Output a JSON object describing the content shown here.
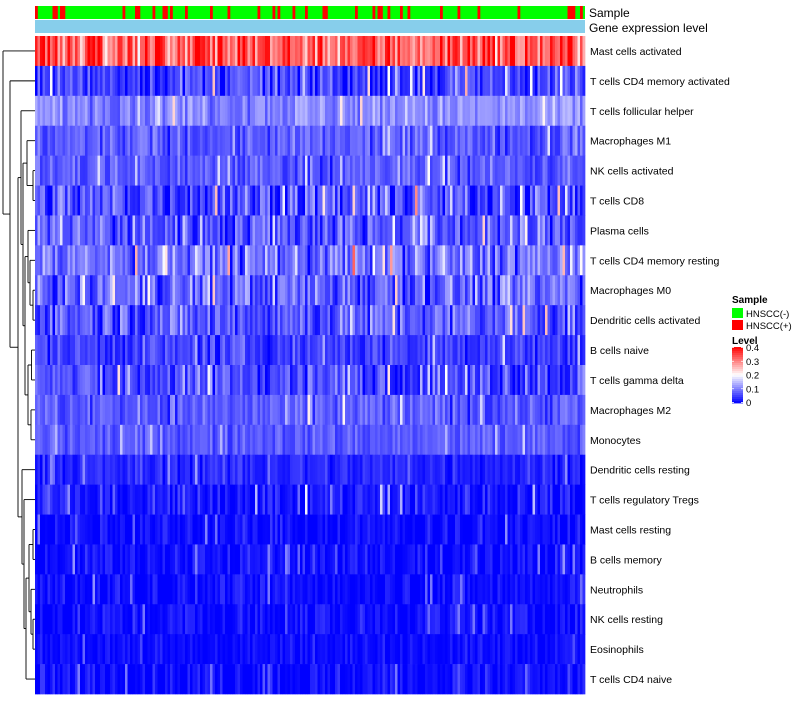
{
  "chart_data": {
    "type": "heatmap",
    "annotation_tracks": [
      {
        "name": "Sample",
        "kind": "categorical"
      },
      {
        "name": "Gene expression level",
        "kind": "constant"
      }
    ],
    "rows": [
      {
        "label": "Mast cells activated",
        "mean": 0.33,
        "spread": 0.09
      },
      {
        "label": "T cells CD4 memory activated",
        "mean": 0.05,
        "spread": 0.06
      },
      {
        "label": "T cells follicular helper",
        "mean": 0.11,
        "spread": 0.04
      },
      {
        "label": "Macrophages M1",
        "mean": 0.07,
        "spread": 0.04
      },
      {
        "label": "NK cells activated",
        "mean": 0.07,
        "spread": 0.04
      },
      {
        "label": "T cells CD8",
        "mean": 0.06,
        "spread": 0.07
      },
      {
        "label": "Plasma cells",
        "mean": 0.07,
        "spread": 0.07
      },
      {
        "label": "T cells CD4 memory resting",
        "mean": 0.09,
        "spread": 0.07
      },
      {
        "label": "Macrophages M0",
        "mean": 0.08,
        "spread": 0.07
      },
      {
        "label": "Dendritic cells activated",
        "mean": 0.07,
        "spread": 0.06
      },
      {
        "label": "B cells naive",
        "mean": 0.05,
        "spread": 0.04
      },
      {
        "label": "T cells gamma delta",
        "mean": 0.06,
        "spread": 0.06
      },
      {
        "label": "Macrophages M2",
        "mean": 0.07,
        "spread": 0.04
      },
      {
        "label": "Monocytes",
        "mean": 0.07,
        "spread": 0.03
      },
      {
        "label": "Dendritic cells resting",
        "mean": 0.03,
        "spread": 0.03
      },
      {
        "label": "T cells regulatory  Tregs",
        "mean": 0.02,
        "spread": 0.04
      },
      {
        "label": "Mast cells resting",
        "mean": 0.01,
        "spread": 0.03
      },
      {
        "label": "B cells memory",
        "mean": 0.01,
        "spread": 0.03
      },
      {
        "label": "Neutrophils",
        "mean": 0.01,
        "spread": 0.03
      },
      {
        "label": "NK cells resting",
        "mean": 0.01,
        "spread": 0.03
      },
      {
        "label": "Eosinophils",
        "mean": 0.01,
        "spread": 0.02
      },
      {
        "label": "T cells CD4 naive",
        "mean": 0.01,
        "spread": 0.03
      }
    ],
    "n_samples": 220,
    "positive_fraction": 0.15,
    "color_scale": {
      "min": 0,
      "max": 0.4,
      "low": "#0000ff",
      "mid": "#ffffff",
      "high": "#ff0000",
      "ticks": [
        0.4,
        0.3,
        0.2,
        0.1,
        0
      ]
    },
    "tick_labels": [
      "0.4",
      "0.3",
      "0.2",
      "0.1",
      "0"
    ]
  },
  "colors": {
    "negative": "#00ff00",
    "positive": "#ff0000",
    "gene_track": "#87ceeb"
  },
  "legend": {
    "sample_title": "Sample",
    "sample_items": [
      "HNSCC(-)",
      "HNSCC(+)"
    ],
    "level_title": "Level"
  }
}
